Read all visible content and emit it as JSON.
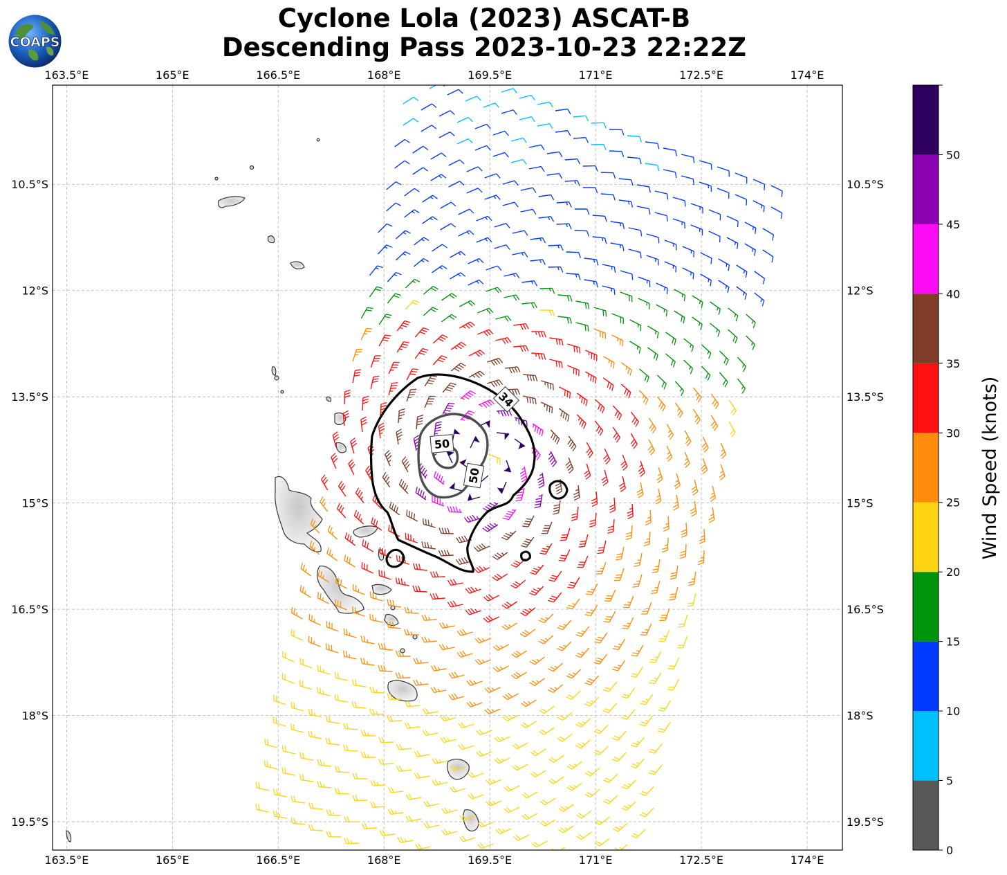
{
  "title": {
    "line1": "Cyclone Lola (2023) ASCAT-B",
    "line2": "Descending Pass 2023-10-23 22:22Z"
  },
  "logo": {
    "text": "COAPS",
    "icon": "globe-logo-icon"
  },
  "map": {
    "lon_ticks": [
      "163.5°E",
      "165°E",
      "166.5°E",
      "168°E",
      "169.5°E",
      "171°E",
      "172.5°E",
      "174°E"
    ],
    "lat_ticks": [
      "10.5°S",
      "12°S",
      "13.5°S",
      "15°S",
      "16.5°S",
      "18°S",
      "19.5°S"
    ],
    "lon_range": [
      163.3,
      174.5
    ],
    "lat_range": [
      -19.9,
      -9.1
    ],
    "gridlines": true,
    "storm_center": {
      "lon": 169.4,
      "lat": -14.4
    },
    "contour_labels": [
      "34",
      "50",
      "50"
    ]
  },
  "colorbar": {
    "label": "Wind Speed (knots)",
    "tick_labels": [
      "0",
      "5",
      "10",
      "15",
      "20",
      "25",
      "30",
      "35",
      "40",
      "45",
      "50"
    ],
    "colors": [
      "#585858",
      "#00bfff",
      "#0039ff",
      "#00940c",
      "#ffd412",
      "#ff8c0a",
      "#ff1010",
      "#7f3c26",
      "#ff0cf6",
      "#8b00b0",
      "#2e005e"
    ]
  }
}
